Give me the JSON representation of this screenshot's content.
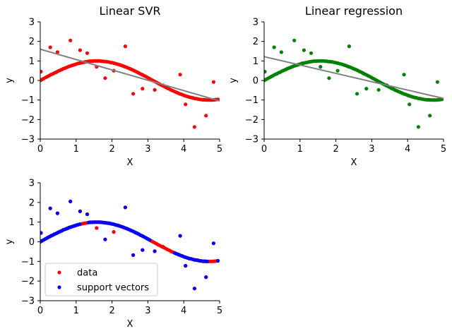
{
  "chart_data": [
    {
      "type": "scatter",
      "title": "Linear SVR",
      "xlabel": "X",
      "ylabel": "y",
      "xlim": [
        0,
        5
      ],
      "ylim": [
        -3,
        3
      ],
      "xticks": [
        "0",
        "1",
        "2",
        "3",
        "4",
        "5"
      ],
      "yticks": [
        "−3",
        "−2",
        "−1",
        "0",
        "1",
        "2",
        "3"
      ],
      "grid": false,
      "point_color": "#ff0000",
      "fit_line": {
        "color": "#808080",
        "x": [
          0,
          5
        ],
        "y": [
          1.6,
          -1.05
        ]
      },
      "series": [
        {
          "color": "#ff0000",
          "x": [
            0.0,
            0.05,
            0.1,
            0.15,
            0.2,
            0.25,
            0.3,
            0.35,
            0.4,
            0.45,
            0.5,
            0.55,
            0.6,
            0.65,
            0.7,
            0.75,
            0.8,
            0.85,
            0.9,
            0.95,
            1.0,
            1.05,
            1.1,
            1.15,
            1.2,
            1.25,
            1.3,
            1.35,
            1.4,
            1.45,
            1.5,
            1.55,
            1.6,
            1.65,
            1.7,
            1.75,
            1.8,
            1.85,
            1.9,
            1.95,
            2.0,
            2.05,
            2.1,
            2.15,
            2.2,
            2.25,
            2.3,
            2.35,
            2.4,
            2.45,
            2.5,
            2.55,
            2.6,
            2.65,
            2.7,
            2.75,
            2.8,
            2.85,
            2.9,
            2.95,
            3.0,
            3.05,
            3.1,
            3.15,
            3.2,
            3.25,
            3.3,
            3.35,
            3.4,
            3.45,
            3.5,
            3.55,
            3.6,
            3.65,
            3.7,
            3.75,
            3.8,
            3.85,
            3.9,
            3.95,
            4.0,
            4.05,
            4.1,
            4.15,
            4.2,
            4.25,
            4.3,
            4.35,
            4.4,
            4.45,
            4.5,
            4.55,
            4.6,
            4.65,
            4.7,
            4.75,
            4.8,
            4.85,
            4.9,
            4.95,
            0.02,
            0.28,
            0.48,
            0.84,
            1.11,
            1.31,
            1.57,
            1.81,
            2.05,
            2.37,
            2.59,
            2.85,
            3.19,
            3.42,
            3.9,
            4.05,
            4.3,
            4.62,
            4.83
          ],
          "y": [
            0.0,
            0.05,
            0.1,
            0.15,
            0.2,
            0.25,
            0.3,
            0.34,
            0.39,
            0.43,
            0.48,
            0.52,
            0.56,
            0.61,
            0.64,
            0.68,
            0.72,
            0.75,
            0.78,
            0.81,
            0.84,
            0.87,
            0.89,
            0.91,
            0.93,
            0.95,
            0.96,
            0.98,
            0.99,
            0.99,
            1.0,
            1.0,
            1.0,
            1.0,
            0.99,
            0.98,
            0.97,
            0.96,
            0.95,
            0.93,
            0.91,
            0.89,
            0.86,
            0.84,
            0.81,
            0.78,
            0.75,
            0.71,
            0.68,
            0.64,
            0.6,
            0.56,
            0.52,
            0.47,
            0.43,
            0.38,
            0.33,
            0.29,
            0.24,
            0.19,
            0.14,
            0.09,
            0.04,
            -0.01,
            -0.06,
            -0.11,
            -0.16,
            -0.21,
            -0.26,
            -0.3,
            -0.35,
            -0.4,
            -0.44,
            -0.49,
            -0.53,
            -0.57,
            -0.61,
            -0.65,
            -0.69,
            -0.72,
            -0.76,
            -0.79,
            -0.82,
            -0.85,
            -0.87,
            -0.89,
            -0.92,
            -0.93,
            -0.95,
            -0.97,
            -0.98,
            -0.99,
            -0.99,
            -1.0,
            -1.0,
            -1.0,
            -1.0,
            -0.99,
            -0.98,
            -0.97,
            0.45,
            1.7,
            1.45,
            2.05,
            1.55,
            1.4,
            0.7,
            0.12,
            0.5,
            1.75,
            -0.68,
            -0.42,
            -0.48,
            -0.25,
            0.3,
            -1.22,
            -2.38,
            -1.8,
            -0.08
          ]
        }
      ]
    },
    {
      "type": "scatter",
      "title": "Linear regression",
      "xlabel": "X",
      "ylabel": "y",
      "xlim": [
        0,
        5
      ],
      "ylim": [
        -3,
        3
      ],
      "xticks": [
        "0",
        "1",
        "2",
        "3",
        "4",
        "5"
      ],
      "yticks": [
        "−3",
        "−2",
        "−1",
        "0",
        "1",
        "2",
        "3"
      ],
      "grid": false,
      "point_color": "#008000",
      "fit_line": {
        "color": "#808080",
        "x": [
          0,
          5
        ],
        "y": [
          1.22,
          -0.92
        ]
      },
      "series": [
        {
          "color": "#008000",
          "x": [
            0.0,
            0.05,
            0.1,
            0.15,
            0.2,
            0.25,
            0.3,
            0.35,
            0.4,
            0.45,
            0.5,
            0.55,
            0.6,
            0.65,
            0.7,
            0.75,
            0.8,
            0.85,
            0.9,
            0.95,
            1.0,
            1.05,
            1.1,
            1.15,
            1.2,
            1.25,
            1.3,
            1.35,
            1.4,
            1.45,
            1.5,
            1.55,
            1.6,
            1.65,
            1.7,
            1.75,
            1.8,
            1.85,
            1.9,
            1.95,
            2.0,
            2.05,
            2.1,
            2.15,
            2.2,
            2.25,
            2.3,
            2.35,
            2.4,
            2.45,
            2.5,
            2.55,
            2.6,
            2.65,
            2.7,
            2.75,
            2.8,
            2.85,
            2.9,
            2.95,
            3.0,
            3.05,
            3.1,
            3.15,
            3.2,
            3.25,
            3.3,
            3.35,
            3.4,
            3.45,
            3.5,
            3.55,
            3.6,
            3.65,
            3.7,
            3.75,
            3.8,
            3.85,
            3.9,
            3.95,
            4.0,
            4.05,
            4.1,
            4.15,
            4.2,
            4.25,
            4.3,
            4.35,
            4.4,
            4.45,
            4.5,
            4.55,
            4.6,
            4.65,
            4.7,
            4.75,
            4.8,
            4.85,
            4.9,
            4.95,
            0.02,
            0.28,
            0.48,
            0.84,
            1.11,
            1.31,
            1.57,
            1.81,
            2.05,
            2.37,
            2.59,
            2.85,
            3.19,
            3.42,
            3.9,
            4.05,
            4.3,
            4.62,
            4.83
          ],
          "y": [
            0.0,
            0.05,
            0.1,
            0.15,
            0.2,
            0.25,
            0.3,
            0.34,
            0.39,
            0.43,
            0.48,
            0.52,
            0.56,
            0.61,
            0.64,
            0.68,
            0.72,
            0.75,
            0.78,
            0.81,
            0.84,
            0.87,
            0.89,
            0.91,
            0.93,
            0.95,
            0.96,
            0.98,
            0.99,
            0.99,
            1.0,
            1.0,
            1.0,
            1.0,
            0.99,
            0.98,
            0.97,
            0.96,
            0.95,
            0.93,
            0.91,
            0.89,
            0.86,
            0.84,
            0.81,
            0.78,
            0.75,
            0.71,
            0.68,
            0.64,
            0.6,
            0.56,
            0.52,
            0.47,
            0.43,
            0.38,
            0.33,
            0.29,
            0.24,
            0.19,
            0.14,
            0.09,
            0.04,
            -0.01,
            -0.06,
            -0.11,
            -0.16,
            -0.21,
            -0.26,
            -0.3,
            -0.35,
            -0.4,
            -0.44,
            -0.49,
            -0.53,
            -0.57,
            -0.61,
            -0.65,
            -0.69,
            -0.72,
            -0.76,
            -0.79,
            -0.82,
            -0.85,
            -0.87,
            -0.89,
            -0.92,
            -0.93,
            -0.95,
            -0.97,
            -0.98,
            -0.99,
            -0.99,
            -1.0,
            -1.0,
            -1.0,
            -1.0,
            -0.99,
            -0.98,
            -0.97,
            0.45,
            1.7,
            1.45,
            2.05,
            1.55,
            1.4,
            0.7,
            0.12,
            0.5,
            1.75,
            -0.68,
            -0.42,
            -0.48,
            -0.25,
            0.3,
            -1.22,
            -2.38,
            -1.8,
            -0.08
          ]
        }
      ]
    },
    {
      "type": "scatter",
      "title": "",
      "xlabel": "X",
      "ylabel": "y",
      "xlim": [
        0,
        5
      ],
      "ylim": [
        -3,
        3
      ],
      "xticks": [
        "0",
        "1",
        "2",
        "3",
        "4",
        "5"
      ],
      "yticks": [
        "−3",
        "−2",
        "−1",
        "0",
        "1",
        "2",
        "3"
      ],
      "grid": false,
      "legend": {
        "placement": "lower-left"
      },
      "series": [
        {
          "name": "data",
          "color": "#ff0000",
          "x": [
            0.0,
            0.05,
            0.1,
            0.15,
            0.2,
            0.25,
            0.3,
            0.35,
            0.4,
            0.45,
            0.5,
            0.55,
            0.6,
            0.65,
            0.7,
            0.75,
            0.8,
            0.85,
            0.9,
            0.95,
            1.0,
            1.05,
            1.1,
            1.15,
            1.2,
            1.25,
            1.3,
            1.35,
            1.4,
            1.45,
            1.5,
            1.55,
            1.6,
            1.65,
            1.7,
            1.75,
            1.8,
            1.85,
            1.9,
            1.95,
            2.0,
            2.05,
            2.1,
            2.15,
            2.2,
            2.25,
            2.3,
            2.35,
            2.4,
            2.45,
            2.5,
            2.55,
            2.6,
            2.65,
            2.7,
            2.75,
            2.8,
            2.85,
            2.9,
            2.95,
            3.0,
            3.05,
            3.1,
            3.15,
            3.2,
            3.25,
            3.3,
            3.35,
            3.4,
            3.45,
            3.5,
            3.55,
            3.6,
            3.65,
            3.7,
            3.75,
            3.8,
            3.85,
            3.9,
            3.95,
            4.0,
            4.05,
            4.1,
            4.15,
            4.2,
            4.25,
            4.3,
            4.35,
            4.4,
            4.45,
            4.5,
            4.55,
            4.6,
            4.65,
            4.7,
            4.75,
            4.8,
            4.85,
            4.9,
            4.95,
            0.02,
            0.28,
            0.48,
            0.84,
            1.11,
            1.31,
            1.57,
            1.81,
            2.05,
            2.37,
            2.59,
            2.85,
            3.19,
            3.42,
            3.9,
            4.05,
            4.3,
            4.62,
            4.83
          ],
          "y": [
            0.0,
            0.05,
            0.1,
            0.15,
            0.2,
            0.25,
            0.3,
            0.34,
            0.39,
            0.43,
            0.48,
            0.52,
            0.56,
            0.61,
            0.64,
            0.68,
            0.72,
            0.75,
            0.78,
            0.81,
            0.84,
            0.87,
            0.89,
            0.91,
            0.93,
            0.95,
            0.96,
            0.98,
            0.99,
            0.99,
            1.0,
            1.0,
            1.0,
            1.0,
            0.99,
            0.98,
            0.97,
            0.96,
            0.95,
            0.93,
            0.91,
            0.89,
            0.86,
            0.84,
            0.81,
            0.78,
            0.75,
            0.71,
            0.68,
            0.64,
            0.6,
            0.56,
            0.52,
            0.47,
            0.43,
            0.38,
            0.33,
            0.29,
            0.24,
            0.19,
            0.14,
            0.09,
            0.04,
            -0.01,
            -0.06,
            -0.11,
            -0.16,
            -0.21,
            -0.26,
            -0.3,
            -0.35,
            -0.4,
            -0.44,
            -0.49,
            -0.53,
            -0.57,
            -0.61,
            -0.65,
            -0.69,
            -0.72,
            -0.76,
            -0.79,
            -0.82,
            -0.85,
            -0.87,
            -0.89,
            -0.92,
            -0.93,
            -0.95,
            -0.97,
            -0.98,
            -0.99,
            -0.99,
            -1.0,
            -1.0,
            -1.0,
            -1.0,
            -0.99,
            -0.98,
            -0.97,
            0.45,
            1.7,
            1.45,
            2.05,
            1.55,
            1.4,
            0.7,
            0.12,
            0.5,
            1.75,
            -0.68,
            -0.42,
            -0.48,
            -0.25,
            0.3,
            -1.22,
            -2.38,
            -1.8,
            -0.08
          ]
        },
        {
          "name": "support vectors",
          "color": "#0000ff",
          "x": [
            0.0,
            0.05,
            0.1,
            0.15,
            0.2,
            0.25,
            0.3,
            0.35,
            0.4,
            0.45,
            0.5,
            0.55,
            0.6,
            0.65,
            0.7,
            0.75,
            0.8,
            0.85,
            0.9,
            0.95,
            1.0,
            1.05,
            1.1,
            1.35,
            1.4,
            1.45,
            1.5,
            1.55,
            1.6,
            1.65,
            1.7,
            1.75,
            1.8,
            1.85,
            1.9,
            1.95,
            2.0,
            2.05,
            2.1,
            2.15,
            2.2,
            2.25,
            2.3,
            2.35,
            2.4,
            2.45,
            2.5,
            2.55,
            2.6,
            2.65,
            2.7,
            2.75,
            2.8,
            2.85,
            2.9,
            2.95,
            3.0,
            3.05,
            3.75,
            3.8,
            3.85,
            3.9,
            3.95,
            4.0,
            4.05,
            4.1,
            4.15,
            4.2,
            4.25,
            4.3,
            4.35,
            4.4,
            4.45,
            4.5,
            4.55,
            4.6,
            4.65,
            4.95,
            0.02,
            0.28,
            0.48,
            0.84,
            1.11,
            1.31,
            1.81,
            2.37,
            2.59,
            2.85,
            3.19,
            3.9,
            4.05,
            4.3,
            4.62,
            4.83
          ],
          "y": [
            0.0,
            0.05,
            0.1,
            0.15,
            0.2,
            0.25,
            0.3,
            0.34,
            0.39,
            0.43,
            0.48,
            0.52,
            0.56,
            0.61,
            0.64,
            0.68,
            0.72,
            0.75,
            0.78,
            0.81,
            0.84,
            0.87,
            0.89,
            0.98,
            0.99,
            0.99,
            1.0,
            1.0,
            1.0,
            1.0,
            0.99,
            0.98,
            0.97,
            0.96,
            0.95,
            0.93,
            0.91,
            0.89,
            0.86,
            0.84,
            0.81,
            0.78,
            0.75,
            0.71,
            0.68,
            0.64,
            0.6,
            0.56,
            0.52,
            0.47,
            0.43,
            0.38,
            0.33,
            0.29,
            0.24,
            0.19,
            0.14,
            0.09,
            -0.57,
            -0.61,
            -0.65,
            -0.69,
            -0.72,
            -0.76,
            -0.79,
            -0.82,
            -0.85,
            -0.87,
            -0.89,
            -0.92,
            -0.93,
            -0.95,
            -0.97,
            -0.98,
            -0.99,
            -0.99,
            -1.0,
            -0.97,
            0.45,
            1.7,
            1.45,
            2.05,
            1.55,
            1.4,
            0.12,
            1.75,
            -0.68,
            -0.42,
            -0.48,
            0.3,
            -1.22,
            -2.38,
            -1.8,
            -0.08
          ]
        }
      ]
    }
  ]
}
